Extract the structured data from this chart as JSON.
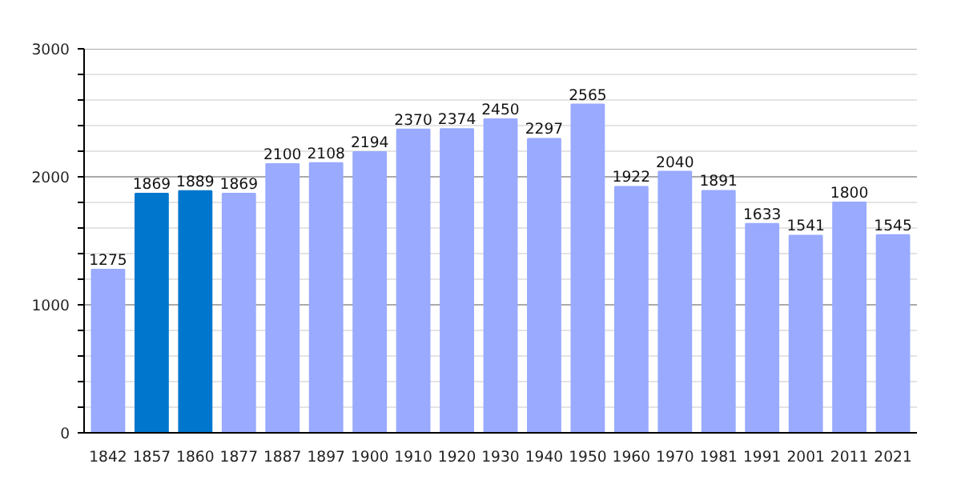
{
  "chart_data": {
    "type": "bar",
    "categories": [
      "1842",
      "1857",
      "1860",
      "1877",
      "1887",
      "1897",
      "1900",
      "1910",
      "1920",
      "1930",
      "1940",
      "1950",
      "1960",
      "1970",
      "1981",
      "1991",
      "2001",
      "2011",
      "2021"
    ],
    "values": [
      1275,
      1869,
      1889,
      1869,
      2100,
      2108,
      2194,
      2370,
      2374,
      2450,
      2297,
      2565,
      1922,
      2040,
      1891,
      1633,
      1541,
      1800,
      1545
    ],
    "colors": [
      "#99aaff",
      "#0077cc",
      "#0077cc",
      "#99aaff",
      "#99aaff",
      "#99aaff",
      "#99aaff",
      "#99aaff",
      "#99aaff",
      "#99aaff",
      "#99aaff",
      "#99aaff",
      "#99aaff",
      "#99aaff",
      "#99aaff",
      "#99aaff",
      "#99aaff",
      "#99aaff",
      "#99aaff"
    ],
    "ylim": [
      0,
      3000
    ],
    "yticks": [
      0,
      {
        "value": 200,
        "label": null
      },
      {
        "value": 400,
        "label": null
      },
      {
        "value": 600,
        "label": null
      },
      {
        "value": 800,
        "label": null
      },
      1000,
      {
        "value": 1200,
        "label": null
      },
      {
        "value": 1400,
        "label": null
      },
      {
        "value": 1600,
        "label": null
      },
      {
        "value": 1800,
        "label": null
      },
      2000,
      {
        "value": 2200,
        "label": null
      },
      {
        "value": 2400,
        "label": null
      },
      {
        "value": 2600,
        "label": null
      },
      {
        "value": 2800,
        "label": null
      },
      3000
    ],
    "grid": "y",
    "data_labels": true
  }
}
